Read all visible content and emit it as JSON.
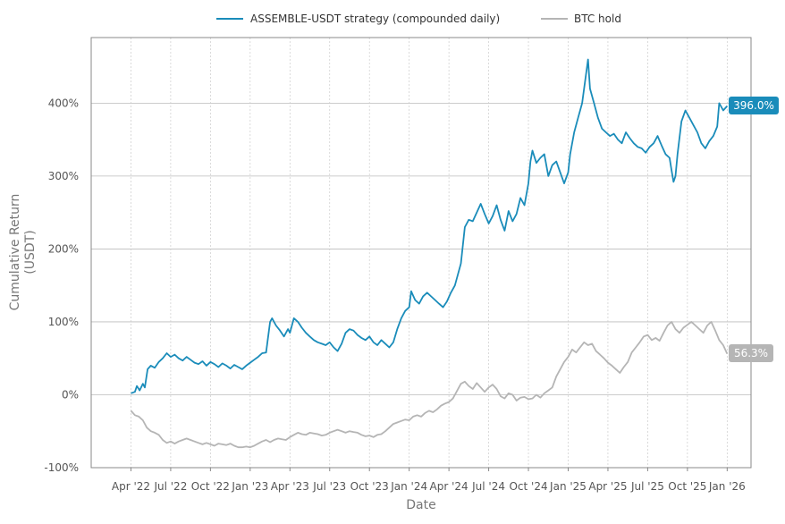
{
  "chart_data": {
    "type": "line",
    "title": "",
    "xlabel": "Date",
    "ylabel_lines": [
      "Cumulative Return",
      "(USDT)"
    ],
    "x_ticks": [
      "Apr '22",
      "Jul '22",
      "Oct '22",
      "Jan '23",
      "Apr '23",
      "Jul '23",
      "Oct '23",
      "Jan '24",
      "Apr '24",
      "Jul '24",
      "Oct '24",
      "Jan '25",
      "Apr '25",
      "Jul '25",
      "Oct '25",
      "Jan '26"
    ],
    "y_ticks": [
      "-100%",
      "0%",
      "100%",
      "200%",
      "300%",
      "400%"
    ],
    "y_tick_values": [
      -100,
      0,
      100,
      200,
      300,
      400
    ],
    "ylim": [
      -100,
      490
    ],
    "xlim": [
      -1.0,
      15.6
    ],
    "grid": true,
    "legend_position": "top-center",
    "x_unit": "quarters from Apr '22",
    "series": [
      {
        "name": "ASSEMBLE-USDT strategy (compounded daily)",
        "color": "#1a8cba",
        "end_label": "396.0%",
        "points": [
          [
            0.0,
            2
          ],
          [
            0.1,
            4
          ],
          [
            0.15,
            12
          ],
          [
            0.22,
            6
          ],
          [
            0.3,
            15
          ],
          [
            0.35,
            10
          ],
          [
            0.42,
            35
          ],
          [
            0.5,
            40
          ],
          [
            0.6,
            37
          ],
          [
            0.7,
            45
          ],
          [
            0.8,
            50
          ],
          [
            0.9,
            57
          ],
          [
            1.0,
            52
          ],
          [
            1.1,
            55
          ],
          [
            1.2,
            50
          ],
          [
            1.3,
            47
          ],
          [
            1.4,
            52
          ],
          [
            1.5,
            48
          ],
          [
            1.6,
            44
          ],
          [
            1.7,
            42
          ],
          [
            1.8,
            46
          ],
          [
            1.9,
            40
          ],
          [
            2.0,
            45
          ],
          [
            2.1,
            42
          ],
          [
            2.2,
            38
          ],
          [
            2.3,
            43
          ],
          [
            2.4,
            40
          ],
          [
            2.5,
            36
          ],
          [
            2.6,
            41
          ],
          [
            2.7,
            38
          ],
          [
            2.8,
            35
          ],
          [
            2.9,
            40
          ],
          [
            3.0,
            44
          ],
          [
            3.1,
            48
          ],
          [
            3.2,
            52
          ],
          [
            3.3,
            57
          ],
          [
            3.4,
            58
          ],
          [
            3.5,
            100
          ],
          [
            3.55,
            105
          ],
          [
            3.65,
            95
          ],
          [
            3.75,
            88
          ],
          [
            3.85,
            80
          ],
          [
            3.95,
            90
          ],
          [
            4.0,
            85
          ],
          [
            4.1,
            105
          ],
          [
            4.2,
            100
          ],
          [
            4.3,
            92
          ],
          [
            4.4,
            85
          ],
          [
            4.5,
            80
          ],
          [
            4.6,
            75
          ],
          [
            4.7,
            72
          ],
          [
            4.8,
            70
          ],
          [
            4.9,
            68
          ],
          [
            5.0,
            72
          ],
          [
            5.1,
            65
          ],
          [
            5.2,
            60
          ],
          [
            5.3,
            70
          ],
          [
            5.4,
            85
          ],
          [
            5.5,
            90
          ],
          [
            5.6,
            88
          ],
          [
            5.7,
            82
          ],
          [
            5.8,
            78
          ],
          [
            5.9,
            75
          ],
          [
            6.0,
            80
          ],
          [
            6.1,
            72
          ],
          [
            6.2,
            68
          ],
          [
            6.3,
            75
          ],
          [
            6.4,
            70
          ],
          [
            6.5,
            65
          ],
          [
            6.6,
            72
          ],
          [
            6.7,
            90
          ],
          [
            6.8,
            105
          ],
          [
            6.9,
            115
          ],
          [
            7.0,
            120
          ],
          [
            7.05,
            142
          ],
          [
            7.15,
            130
          ],
          [
            7.25,
            125
          ],
          [
            7.35,
            135
          ],
          [
            7.45,
            140
          ],
          [
            7.55,
            135
          ],
          [
            7.65,
            130
          ],
          [
            7.75,
            125
          ],
          [
            7.85,
            120
          ],
          [
            7.95,
            128
          ],
          [
            8.05,
            140
          ],
          [
            8.15,
            150
          ],
          [
            8.3,
            180
          ],
          [
            8.4,
            230
          ],
          [
            8.5,
            240
          ],
          [
            8.6,
            238
          ],
          [
            8.7,
            250
          ],
          [
            8.8,
            262
          ],
          [
            8.9,
            248
          ],
          [
            9.0,
            235
          ],
          [
            9.1,
            245
          ],
          [
            9.2,
            260
          ],
          [
            9.3,
            240
          ],
          [
            9.4,
            225
          ],
          [
            9.5,
            252
          ],
          [
            9.6,
            238
          ],
          [
            9.7,
            248
          ],
          [
            9.8,
            270
          ],
          [
            9.9,
            260
          ],
          [
            10.0,
            290
          ],
          [
            10.05,
            320
          ],
          [
            10.1,
            335
          ],
          [
            10.2,
            318
          ],
          [
            10.3,
            325
          ],
          [
            10.4,
            330
          ],
          [
            10.5,
            300
          ],
          [
            10.6,
            315
          ],
          [
            10.7,
            320
          ],
          [
            10.8,
            305
          ],
          [
            10.9,
            290
          ],
          [
            11.0,
            305
          ],
          [
            11.05,
            330
          ],
          [
            11.15,
            360
          ],
          [
            11.25,
            380
          ],
          [
            11.35,
            400
          ],
          [
            11.45,
            440
          ],
          [
            11.5,
            460
          ],
          [
            11.55,
            420
          ],
          [
            11.65,
            400
          ],
          [
            11.75,
            380
          ],
          [
            11.85,
            365
          ],
          [
            11.95,
            360
          ],
          [
            12.05,
            355
          ],
          [
            12.15,
            358
          ],
          [
            12.25,
            350
          ],
          [
            12.35,
            345
          ],
          [
            12.45,
            360
          ],
          [
            12.55,
            352
          ],
          [
            12.65,
            345
          ],
          [
            12.75,
            340
          ],
          [
            12.85,
            338
          ],
          [
            12.95,
            332
          ],
          [
            13.05,
            340
          ],
          [
            13.15,
            345
          ],
          [
            13.25,
            355
          ],
          [
            13.35,
            342
          ],
          [
            13.45,
            330
          ],
          [
            13.55,
            325
          ],
          [
            13.6,
            308
          ],
          [
            13.65,
            292
          ],
          [
            13.7,
            300
          ],
          [
            13.75,
            330
          ],
          [
            13.85,
            375
          ],
          [
            13.95,
            390
          ],
          [
            14.05,
            380
          ],
          [
            14.15,
            370
          ],
          [
            14.25,
            360
          ],
          [
            14.35,
            345
          ],
          [
            14.45,
            338
          ],
          [
            14.55,
            348
          ],
          [
            14.65,
            355
          ],
          [
            14.75,
            368
          ],
          [
            14.8,
            400
          ],
          [
            14.85,
            395
          ],
          [
            14.9,
            390
          ],
          [
            15.0,
            396
          ]
        ]
      },
      {
        "name": "BTC hold",
        "color": "#b5b5b5",
        "end_label": "56.3%",
        "points": [
          [
            0.0,
            -22
          ],
          [
            0.1,
            -28
          ],
          [
            0.2,
            -30
          ],
          [
            0.3,
            -35
          ],
          [
            0.4,
            -45
          ],
          [
            0.5,
            -50
          ],
          [
            0.6,
            -52
          ],
          [
            0.7,
            -55
          ],
          [
            0.8,
            -62
          ],
          [
            0.9,
            -66
          ],
          [
            1.0,
            -64
          ],
          [
            1.1,
            -67
          ],
          [
            1.2,
            -64
          ],
          [
            1.3,
            -62
          ],
          [
            1.4,
            -60
          ],
          [
            1.5,
            -62
          ],
          [
            1.6,
            -64
          ],
          [
            1.7,
            -66
          ],
          [
            1.8,
            -68
          ],
          [
            1.9,
            -66
          ],
          [
            2.0,
            -68
          ],
          [
            2.1,
            -70
          ],
          [
            2.2,
            -67
          ],
          [
            2.3,
            -68
          ],
          [
            2.4,
            -69
          ],
          [
            2.5,
            -67
          ],
          [
            2.6,
            -70
          ],
          [
            2.7,
            -72
          ],
          [
            2.8,
            -72
          ],
          [
            2.9,
            -71
          ],
          [
            3.0,
            -72
          ],
          [
            3.1,
            -70
          ],
          [
            3.2,
            -67
          ],
          [
            3.3,
            -64
          ],
          [
            3.4,
            -62
          ],
          [
            3.5,
            -65
          ],
          [
            3.6,
            -62
          ],
          [
            3.7,
            -60
          ],
          [
            3.8,
            -61
          ],
          [
            3.9,
            -62
          ],
          [
            4.0,
            -58
          ],
          [
            4.1,
            -55
          ],
          [
            4.2,
            -52
          ],
          [
            4.3,
            -54
          ],
          [
            4.4,
            -55
          ],
          [
            4.5,
            -52
          ],
          [
            4.6,
            -53
          ],
          [
            4.7,
            -54
          ],
          [
            4.8,
            -56
          ],
          [
            4.9,
            -55
          ],
          [
            5.0,
            -52
          ],
          [
            5.1,
            -50
          ],
          [
            5.2,
            -48
          ],
          [
            5.3,
            -50
          ],
          [
            5.4,
            -52
          ],
          [
            5.5,
            -50
          ],
          [
            5.6,
            -51
          ],
          [
            5.7,
            -52
          ],
          [
            5.8,
            -55
          ],
          [
            5.9,
            -57
          ],
          [
            6.0,
            -56
          ],
          [
            6.1,
            -58
          ],
          [
            6.2,
            -55
          ],
          [
            6.3,
            -54
          ],
          [
            6.4,
            -50
          ],
          [
            6.5,
            -45
          ],
          [
            6.6,
            -40
          ],
          [
            6.7,
            -38
          ],
          [
            6.8,
            -36
          ],
          [
            6.9,
            -34
          ],
          [
            7.0,
            -35
          ],
          [
            7.1,
            -30
          ],
          [
            7.2,
            -28
          ],
          [
            7.3,
            -30
          ],
          [
            7.4,
            -25
          ],
          [
            7.5,
            -22
          ],
          [
            7.6,
            -24
          ],
          [
            7.7,
            -20
          ],
          [
            7.8,
            -15
          ],
          [
            7.9,
            -12
          ],
          [
            8.0,
            -10
          ],
          [
            8.1,
            -5
          ],
          [
            8.2,
            5
          ],
          [
            8.3,
            15
          ],
          [
            8.4,
            18
          ],
          [
            8.5,
            12
          ],
          [
            8.6,
            8
          ],
          [
            8.7,
            16
          ],
          [
            8.8,
            10
          ],
          [
            8.9,
            4
          ],
          [
            9.0,
            10
          ],
          [
            9.1,
            14
          ],
          [
            9.2,
            8
          ],
          [
            9.3,
            -2
          ],
          [
            9.4,
            -5
          ],
          [
            9.5,
            2
          ],
          [
            9.6,
            0
          ],
          [
            9.7,
            -8
          ],
          [
            9.8,
            -4
          ],
          [
            9.9,
            -3
          ],
          [
            10.0,
            -6
          ],
          [
            10.1,
            -5
          ],
          [
            10.2,
            0
          ],
          [
            10.3,
            -4
          ],
          [
            10.4,
            2
          ],
          [
            10.5,
            6
          ],
          [
            10.6,
            10
          ],
          [
            10.7,
            25
          ],
          [
            10.8,
            35
          ],
          [
            10.9,
            45
          ],
          [
            11.0,
            52
          ],
          [
            11.1,
            62
          ],
          [
            11.2,
            58
          ],
          [
            11.3,
            65
          ],
          [
            11.4,
            72
          ],
          [
            11.5,
            68
          ],
          [
            11.6,
            70
          ],
          [
            11.7,
            60
          ],
          [
            11.8,
            55
          ],
          [
            11.9,
            50
          ],
          [
            12.0,
            44
          ],
          [
            12.1,
            40
          ],
          [
            12.2,
            35
          ],
          [
            12.3,
            30
          ],
          [
            12.4,
            38
          ],
          [
            12.5,
            45
          ],
          [
            12.6,
            58
          ],
          [
            12.7,
            65
          ],
          [
            12.8,
            72
          ],
          [
            12.9,
            80
          ],
          [
            13.0,
            82
          ],
          [
            13.1,
            75
          ],
          [
            13.2,
            78
          ],
          [
            13.3,
            74
          ],
          [
            13.4,
            85
          ],
          [
            13.5,
            95
          ],
          [
            13.6,
            100
          ],
          [
            13.7,
            90
          ],
          [
            13.8,
            85
          ],
          [
            13.9,
            92
          ],
          [
            14.0,
            96
          ],
          [
            14.1,
            100
          ],
          [
            14.2,
            95
          ],
          [
            14.3,
            90
          ],
          [
            14.4,
            85
          ],
          [
            14.5,
            95
          ],
          [
            14.6,
            100
          ],
          [
            14.7,
            88
          ],
          [
            14.8,
            75
          ],
          [
            14.9,
            68
          ],
          [
            15.0,
            56.3
          ]
        ]
      }
    ]
  }
}
